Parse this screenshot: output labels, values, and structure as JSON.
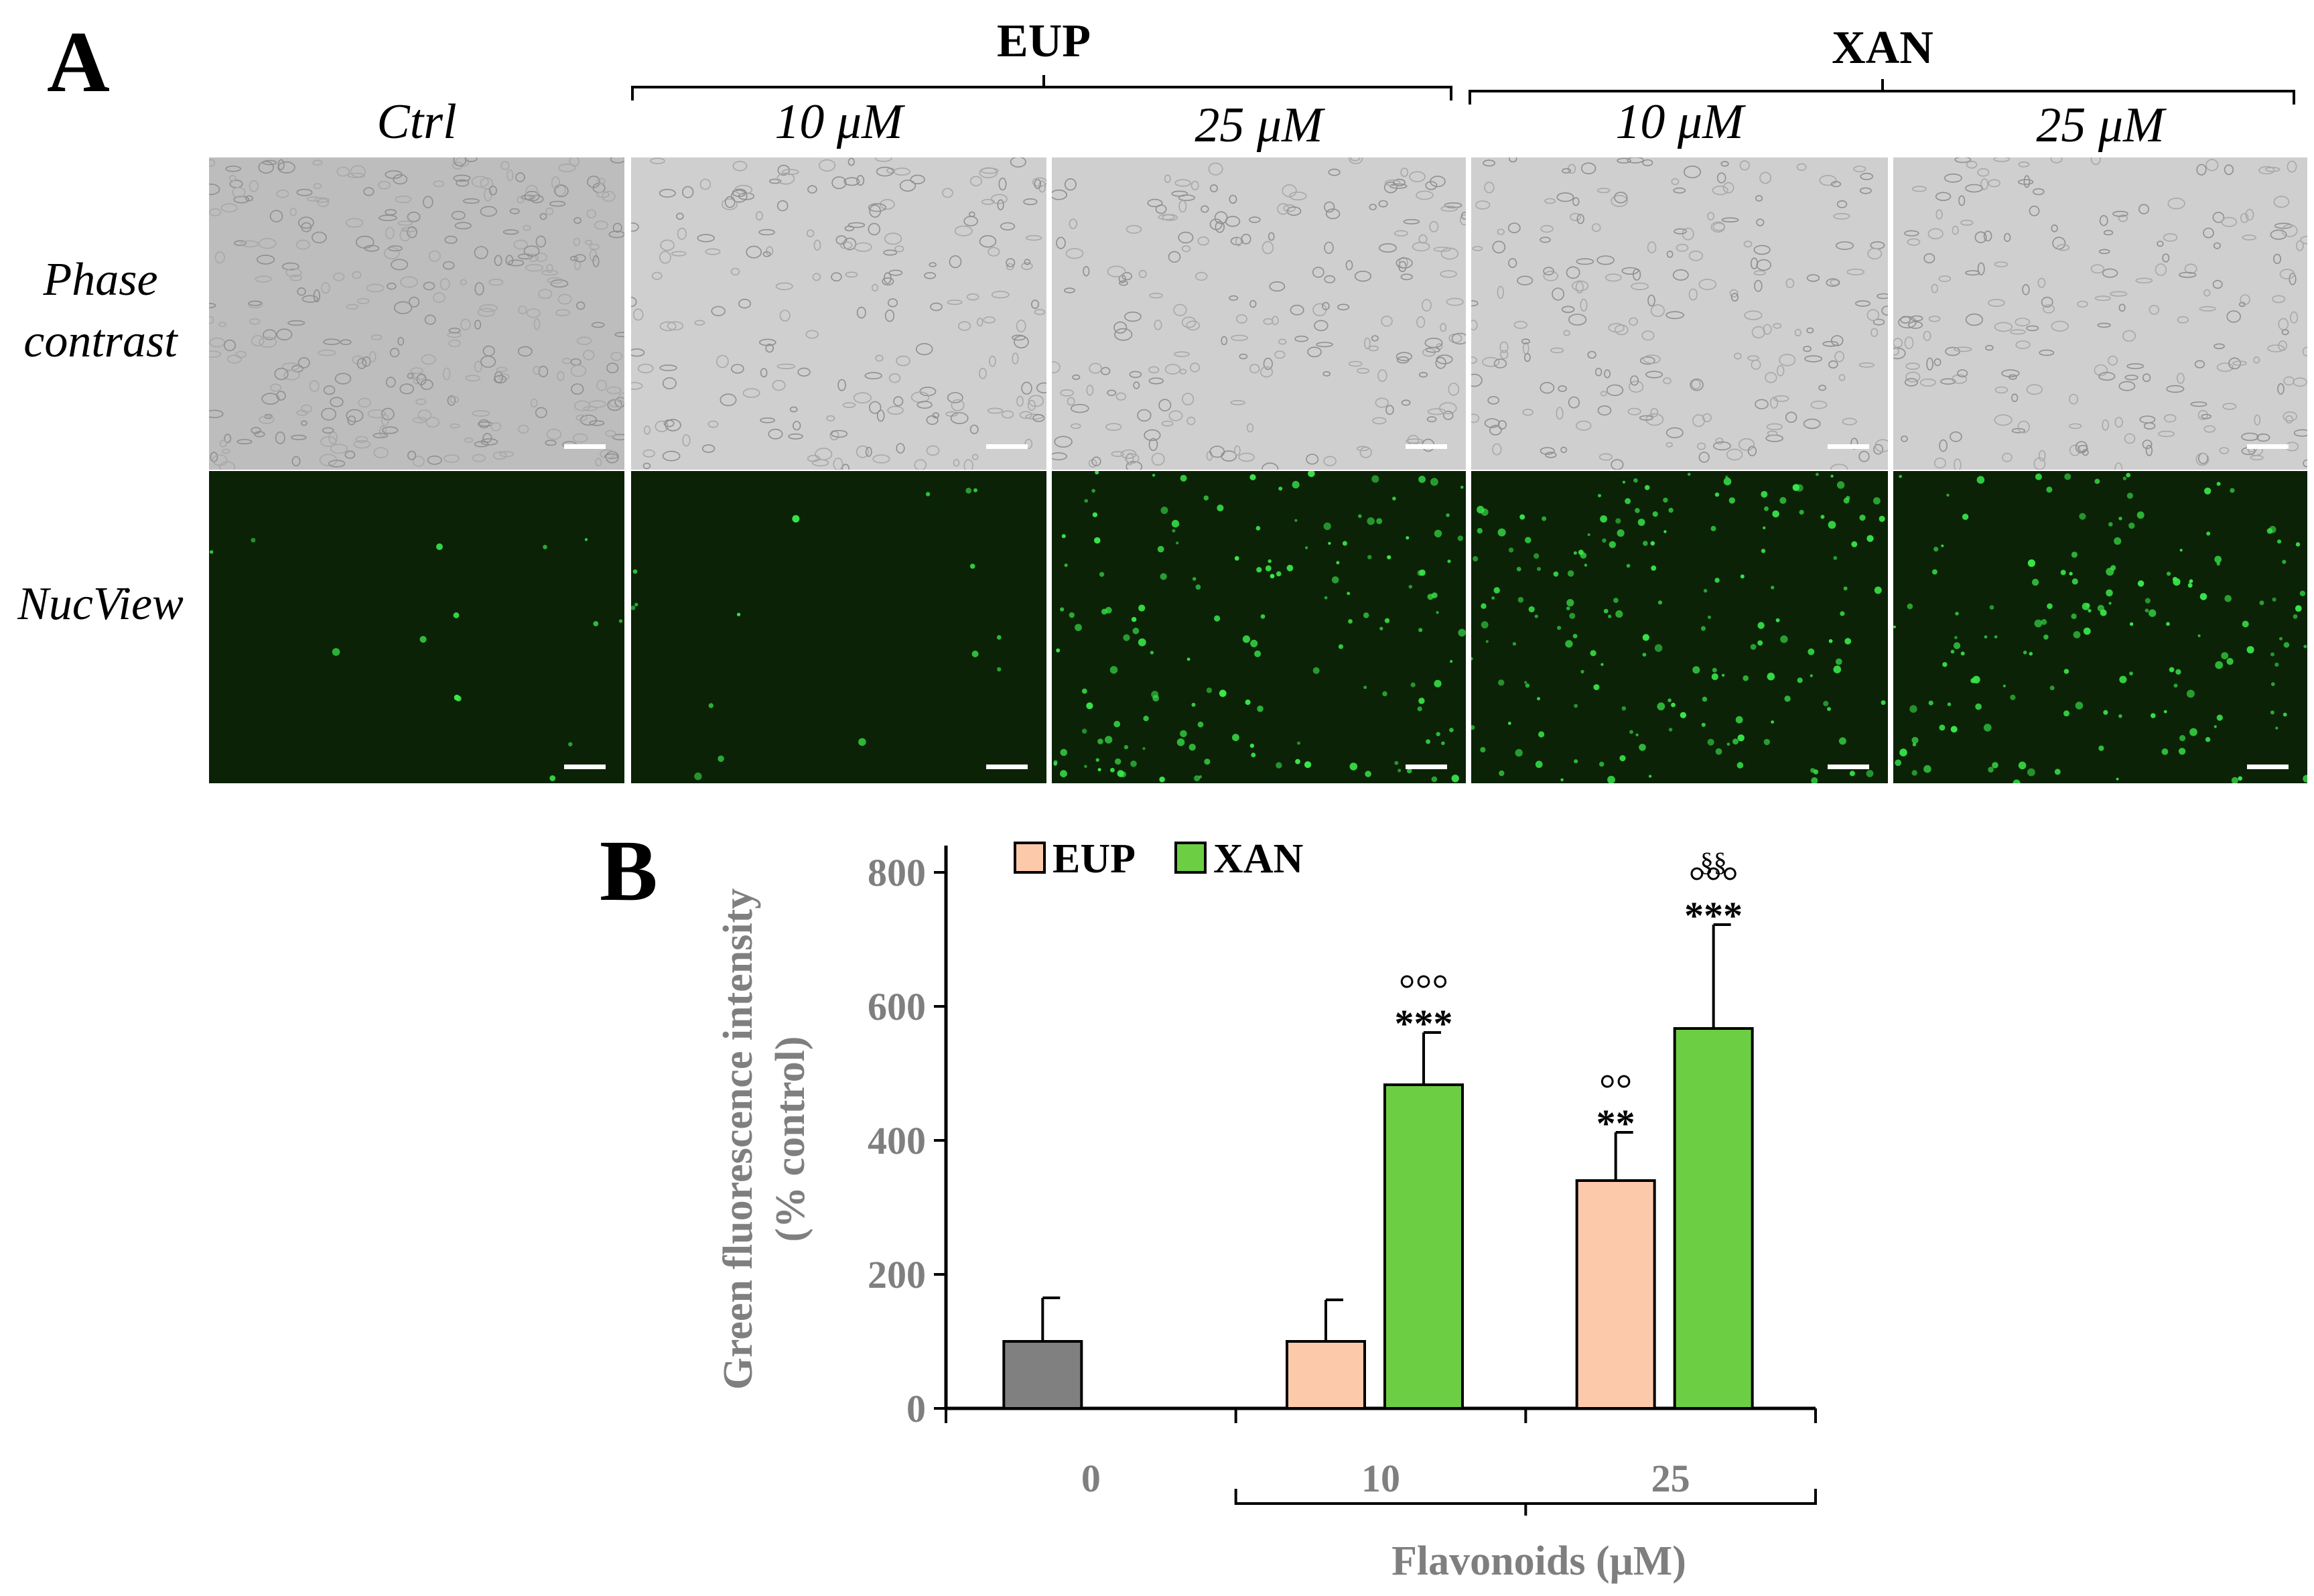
{
  "panel_a": {
    "letter": "A",
    "groups": [
      {
        "label": "EUP"
      },
      {
        "label": "XAN"
      }
    ],
    "columns": [
      {
        "label": "Ctrl"
      },
      {
        "label": "10 μM"
      },
      {
        "label": "25 μM"
      },
      {
        "label": "10 μM"
      },
      {
        "label": "25 μM"
      }
    ],
    "rows": [
      {
        "line1": "Phase",
        "line2": "contrast"
      },
      {
        "line1": "NucView",
        "line2": ""
      }
    ],
    "colors": {
      "phase_bg": "#cfcfcf",
      "nucview_bg": "#0b2206",
      "nucview_spot": "#39e84a"
    }
  },
  "panel_b": {
    "letter": "B",
    "chart_data": {
      "type": "bar",
      "ylabel_line1": "Green fluorescence intensity",
      "ylabel_line2": "(% control)",
      "xlabel": "Flavonoids (μM)",
      "categories": [
        "0",
        "10",
        "25"
      ],
      "ylim": [
        0,
        800
      ],
      "yticks": [
        "0",
        "200",
        "400",
        "600",
        "800"
      ],
      "series": [
        {
          "name": "Ctrl",
          "color": "#808080",
          "values": [
            100,
            null,
            null
          ],
          "errors": [
            65,
            null,
            null
          ]
        },
        {
          "name": "EUP",
          "color": "#fccaab",
          "values": [
            null,
            100,
            340
          ],
          "errors": [
            null,
            62,
            72
          ]
        },
        {
          "name": "XAN",
          "color": "#6ccf43",
          "values": [
            null,
            483,
            567
          ],
          "errors": [
            null,
            78,
            155
          ]
        }
      ],
      "legend": [
        {
          "name": "EUP",
          "color": "#fccaab"
        },
        {
          "name": "XAN",
          "color": "#6ccf43"
        }
      ],
      "legend_position": "top-left",
      "annotations": [
        {
          "category": "10",
          "series": "XAN",
          "lines": [
            "°°°",
            "***"
          ]
        },
        {
          "category": "25",
          "series": "EUP",
          "lines": [
            "°°",
            "**"
          ]
        },
        {
          "category": "25",
          "series": "XAN",
          "lines": [
            "§§",
            "°°°",
            "***"
          ]
        }
      ]
    }
  }
}
